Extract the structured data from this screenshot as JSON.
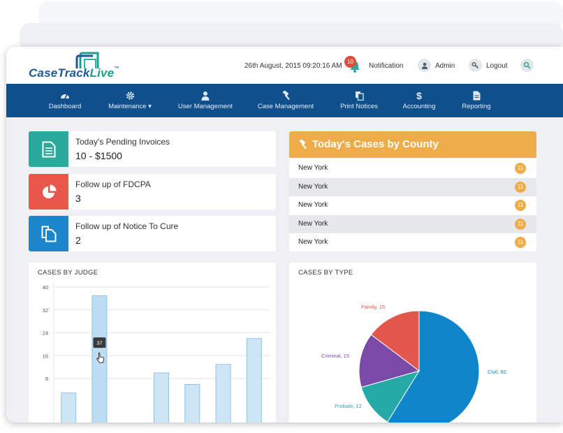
{
  "header": {
    "logo_main": "CaseTrack",
    "logo_accent": "Live",
    "logo_tm": "™",
    "datetime": "26th August, 2015 09:20:16 AM",
    "notification_count": "10",
    "notification_label": "Notification",
    "admin_label": "Admin",
    "logout_label": "Logout"
  },
  "nav": {
    "items": [
      {
        "label": "Dashboard",
        "icon": "dashboard-icon"
      },
      {
        "label": "Maintenance ▾",
        "icon": "gear-icon"
      },
      {
        "label": "User Management",
        "icon": "user-icon"
      },
      {
        "label": "Case Management",
        "icon": "gavel-icon"
      },
      {
        "label": "Print Notices",
        "icon": "documents-icon"
      },
      {
        "label": "Accounting",
        "icon": "dollar-icon"
      },
      {
        "label": "Reporting",
        "icon": "document-icon"
      }
    ]
  },
  "stats": [
    {
      "title": "Today's Pending Invoices",
      "value": "10 - $1500",
      "color": "#2aaa9c",
      "icon": "invoice-icon"
    },
    {
      "title": "Follow up of FDCPA",
      "value": "3",
      "color": "#e8574a",
      "icon": "pie-icon"
    },
    {
      "title": "Follow up of Notice To Cure",
      "value": "2",
      "color": "#1b86c9",
      "icon": "documents-icon"
    }
  ],
  "county": {
    "title": "Today's Cases by County",
    "rows": [
      {
        "name": "New York",
        "count": "11"
      },
      {
        "name": "New York",
        "count": "11"
      },
      {
        "name": "New York",
        "count": "11"
      },
      {
        "name": "New York",
        "count": "11"
      },
      {
        "name": "New York",
        "count": "11"
      }
    ]
  },
  "chart_data": [
    {
      "type": "bar",
      "title": "CASES BY JUDGE",
      "categories": [
        "",
        "",
        "",
        "",
        "",
        "",
        ""
      ],
      "values": [
        3,
        37,
        0,
        10,
        6,
        13,
        22
      ],
      "ylim": [
        0,
        40
      ],
      "yticks": [
        "40",
        "32",
        "24",
        "16",
        "8"
      ],
      "tooltip": "37",
      "highlight_index": 1,
      "grid": true,
      "colors": {
        "bar": "#cde6f6",
        "bar_stroke": "#8fc3e8",
        "highlight": "#bcdcf2"
      }
    },
    {
      "type": "pie",
      "title": "CASES BY TYPE",
      "slices": [
        {
          "label": "Civil, 60",
          "value": 60,
          "color": "#0e86c9"
        },
        {
          "label": "Probate, 12",
          "value": 12,
          "color": "#26aaa8"
        },
        {
          "label": "Criminal, 15",
          "value": 15,
          "color": "#7a4aa8"
        },
        {
          "label": "Family, 15",
          "value": 15,
          "color": "#e3564c"
        }
      ]
    }
  ]
}
